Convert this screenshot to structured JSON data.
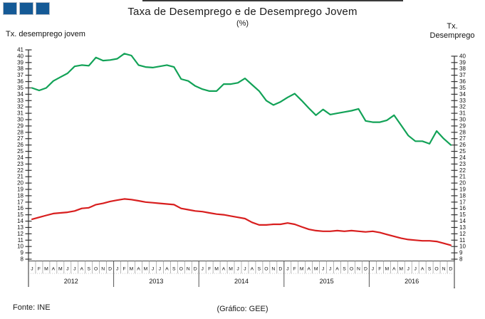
{
  "header": {
    "title": "Taxa de Desemprego e de Desemprego Jovem",
    "subtitle": "(%)"
  },
  "axis_labels": {
    "left": "Tx. desemprego jovem",
    "right_line1": "Tx.",
    "right_line2": "Desemprego"
  },
  "footer": {
    "source": "Fonte: INE",
    "credit": "(Gráfico: GEE)"
  },
  "colors": {
    "youth_green": "#12a257",
    "total_red": "#d81e1e",
    "logo_blue": "#155a96",
    "axis_line": "#333333"
  },
  "logo": {
    "name": "gee-logo-squares",
    "square_count": 3
  },
  "chart_data": {
    "type": "line",
    "title": "Taxa de Desemprego e de Desemprego Jovem",
    "subtitle": "(%)",
    "grid": false,
    "legend_position": "top-corners",
    "x": {
      "month_letters": [
        "J",
        "F",
        "M",
        "A",
        "M",
        "J",
        "J",
        "A",
        "S",
        "O",
        "N",
        "D"
      ],
      "years": [
        "2012",
        "2013",
        "2014",
        "2015",
        "2016"
      ]
    },
    "left_axis": {
      "label": "Tx. desemprego jovem",
      "min": 8,
      "max": 41,
      "tick_step": 1
    },
    "right_axis": {
      "label": "Tx. Desemprego",
      "min": 8,
      "max": 40,
      "tick_step": 1
    },
    "series": [
      {
        "name": "Tx. desemprego jovem",
        "color": "#12a257",
        "axis": "left",
        "values": [
          35.0,
          34.6,
          35.0,
          36.1,
          36.7,
          37.3,
          38.4,
          38.6,
          38.5,
          39.8,
          39.3,
          39.4,
          39.6,
          40.4,
          40.1,
          38.6,
          38.3,
          38.2,
          38.4,
          38.6,
          38.3,
          36.4,
          36.1,
          35.3,
          34.8,
          34.5,
          34.5,
          35.6,
          35.6,
          35.8,
          36.5,
          35.5,
          34.5,
          33.0,
          32.3,
          32.8,
          33.5,
          34.1,
          33.0,
          31.8,
          30.7,
          31.6,
          30.8,
          31.0,
          31.2,
          31.4,
          31.7,
          29.8,
          29.6,
          29.6,
          29.9,
          30.7,
          29.1,
          27.5,
          26.6,
          26.6,
          26.2,
          28.2,
          27.0,
          26.0
        ]
      },
      {
        "name": "Tx. Desemprego",
        "color": "#d81e1e",
        "axis": "right",
        "values": [
          14.3,
          14.6,
          14.9,
          15.2,
          15.3,
          15.4,
          15.6,
          16.0,
          16.1,
          16.6,
          16.8,
          17.1,
          17.3,
          17.5,
          17.4,
          17.2,
          17.0,
          16.9,
          16.8,
          16.7,
          16.6,
          16.0,
          15.8,
          15.6,
          15.5,
          15.3,
          15.1,
          15.0,
          14.8,
          14.6,
          14.4,
          13.8,
          13.4,
          13.4,
          13.5,
          13.5,
          13.7,
          13.5,
          13.1,
          12.7,
          12.5,
          12.4,
          12.4,
          12.5,
          12.4,
          12.5,
          12.4,
          12.3,
          12.4,
          12.2,
          11.9,
          11.6,
          11.3,
          11.1,
          11.0,
          10.9,
          10.9,
          10.8,
          10.5,
          10.2
        ]
      }
    ]
  }
}
